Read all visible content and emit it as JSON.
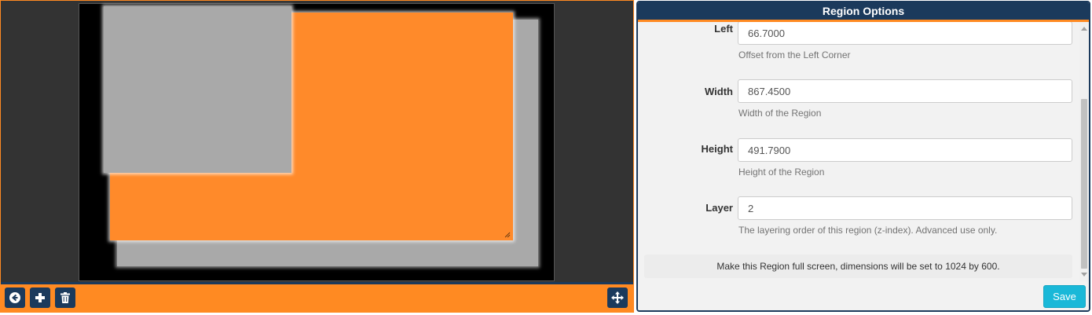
{
  "designer": {
    "regions": [
      {
        "name": "region-back",
        "color": "#a9a9a9"
      },
      {
        "name": "region-selected",
        "color": "#ff8a2a"
      },
      {
        "name": "region-front",
        "color": "#a9a9a9"
      }
    ],
    "toolbar": {
      "back_icon": "circle-arrow-left-icon",
      "add_icon": "plus-icon",
      "delete_icon": "trash-icon",
      "move_icon": "move-arrows-icon"
    }
  },
  "panel": {
    "title": "Region Options",
    "fields": {
      "left": {
        "label": "Left",
        "value": "66.7000",
        "help": "Offset from the Left Corner"
      },
      "width": {
        "label": "Width",
        "value": "867.4500",
        "help": "Width of the Region"
      },
      "height": {
        "label": "Height",
        "value": "491.7900",
        "help": "Height of the Region"
      },
      "layer": {
        "label": "Layer",
        "value": "2",
        "help": "The layering order of this region (z-index). Advanced use only."
      }
    },
    "fullscreen_note": "Make this Region full screen, dimensions will be set to 1024 by 600.",
    "save_label": "Save"
  },
  "colors": {
    "accent": "#ff8a22",
    "navy": "#1b3a5c",
    "save": "#1ab8d8"
  }
}
